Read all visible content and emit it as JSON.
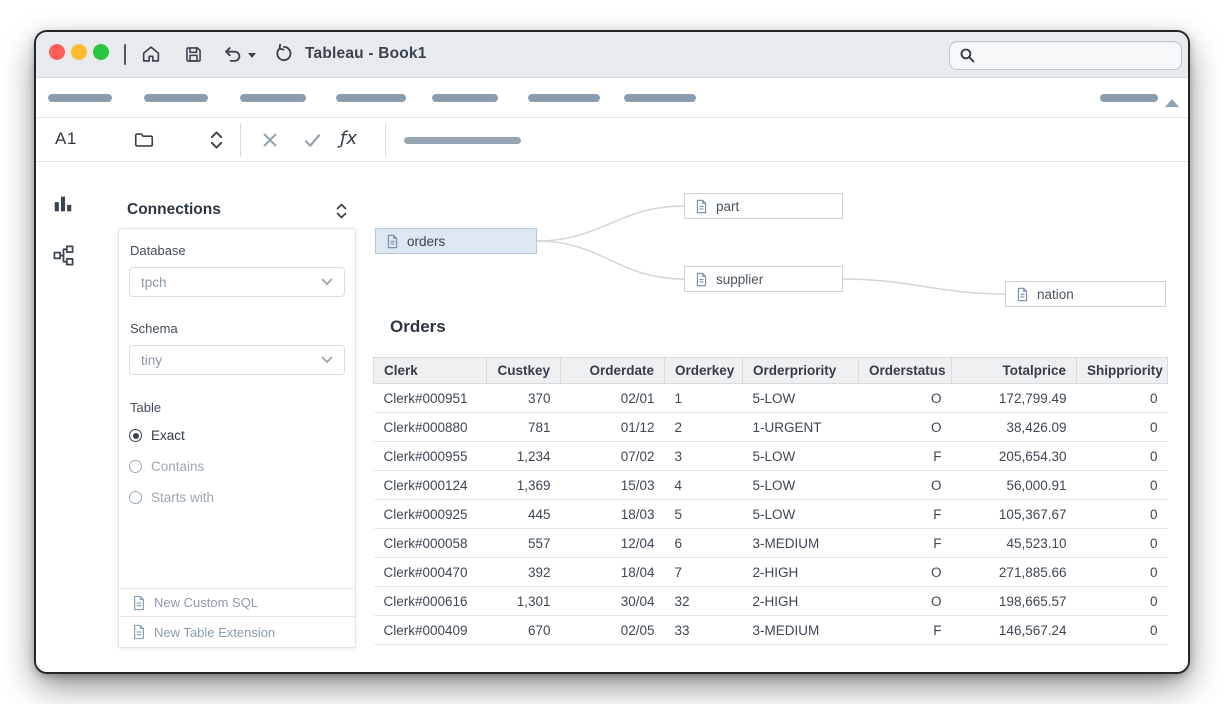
{
  "window": {
    "title": "Tableau - Book1"
  },
  "formula_bar": {
    "cell_ref": "A1",
    "fx": "ƒx"
  },
  "connections": {
    "title": "Connections",
    "database_label": "Database",
    "database_value": "tpch",
    "schema_label": "Schema",
    "schema_value": "tiny",
    "table_label": "Table",
    "table_match_options": [
      {
        "label": "Exact",
        "selected": true
      },
      {
        "label": "Contains",
        "selected": false
      },
      {
        "label": "Starts with",
        "selected": false
      }
    ],
    "actions": [
      {
        "label": "New Custom SQL"
      },
      {
        "label": "New Table Extension"
      }
    ]
  },
  "model": {
    "nodes": [
      {
        "label": "orders",
        "selected": true
      },
      {
        "label": "part",
        "selected": false
      },
      {
        "label": "supplier",
        "selected": false
      },
      {
        "label": "nation",
        "selected": false
      }
    ]
  },
  "preview": {
    "title": "Orders",
    "columns": [
      {
        "label": "Clerk",
        "align": "left"
      },
      {
        "label": "Custkey",
        "align": "right"
      },
      {
        "label": "Orderdate",
        "align": "right"
      },
      {
        "label": "Orderkey",
        "align": "left"
      },
      {
        "label": "Orderpriority",
        "align": "left"
      },
      {
        "label": "Orderstatus",
        "align": "right"
      },
      {
        "label": "Totalprice",
        "align": "right"
      },
      {
        "label": "Shippriority",
        "align": "right"
      }
    ],
    "rows": [
      [
        "Clerk#000951",
        "370",
        "02/01",
        "1",
        "5-LOW",
        "O",
        "172,799.49",
        "0"
      ],
      [
        "Clerk#000880",
        "781",
        "01/12",
        "2",
        "1-URGENT",
        "O",
        "38,426.09",
        "0"
      ],
      [
        "Clerk#000955",
        "1,234",
        "07/02",
        "3",
        "5-LOW",
        "F",
        "205,654.30",
        "0"
      ],
      [
        "Clerk#000124",
        "1,369",
        "15/03",
        "4",
        "5-LOW",
        "O",
        "56,000.91",
        "0"
      ],
      [
        "Clerk#000925",
        "445",
        "18/03",
        "5",
        "5-LOW",
        "F",
        "105,367.67",
        "0"
      ],
      [
        "Clerk#000058",
        "557",
        "12/04",
        "6",
        "3-MEDIUM",
        "F",
        "45,523.10",
        "0"
      ],
      [
        "Clerk#000470",
        "392",
        "18/04",
        "7",
        "2-HIGH",
        "O",
        "271,885.66",
        "0"
      ],
      [
        "Clerk#000616",
        "1,301",
        "30/04",
        "32",
        "2-HIGH",
        "O",
        "198,665.57",
        "0"
      ],
      [
        "Clerk#000409",
        "670",
        "02/05",
        "33",
        "3-MEDIUM",
        "F",
        "146,567.24",
        "0"
      ]
    ]
  },
  "colors": {
    "accent_selected_node": "#dce7f2",
    "traffic_red": "#ff5f57",
    "traffic_yellow": "#febc2e",
    "traffic_green": "#29c73f"
  }
}
